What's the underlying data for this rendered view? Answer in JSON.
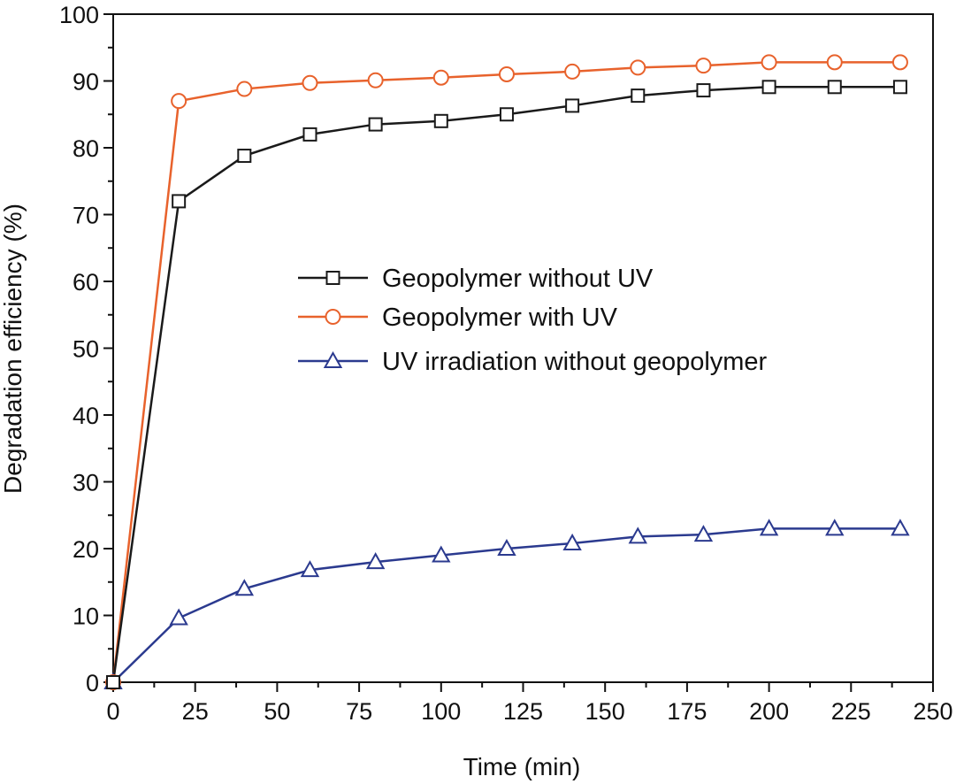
{
  "chart_data": {
    "type": "line",
    "title": "",
    "xlabel": "Time (min)",
    "ylabel": "Degradation efficiency (%)",
    "xlim": [
      0,
      250
    ],
    "ylim": [
      0,
      100
    ],
    "x_ticks": [
      0,
      25,
      50,
      75,
      100,
      125,
      150,
      175,
      200,
      225,
      250
    ],
    "y_ticks": [
      0,
      10,
      20,
      30,
      40,
      50,
      60,
      70,
      80,
      90,
      100
    ],
    "grid": false,
    "legend_position": "center-right",
    "x": [
      0,
      20,
      40,
      60,
      80,
      100,
      120,
      140,
      160,
      180,
      200,
      220,
      240
    ],
    "series": [
      {
        "name": "Geopolymer without UV",
        "marker": "square",
        "color": "#1a1a1a",
        "values": [
          0,
          72,
          78.8,
          82,
          83.5,
          84,
          85,
          86.3,
          87.8,
          88.6,
          89.1,
          89.1,
          89.1
        ]
      },
      {
        "name": "Geopolymer with UV",
        "marker": "circle",
        "color": "#e8622c",
        "values": [
          0,
          87,
          88.8,
          89.7,
          90.1,
          90.5,
          91,
          91.4,
          92,
          92.3,
          92.8,
          92.8,
          92.8
        ]
      },
      {
        "name": "UV irradiation without geopolymer",
        "marker": "triangle",
        "color": "#2b3a8f",
        "values": [
          0,
          9.6,
          14,
          16.8,
          18,
          19,
          20,
          20.8,
          21.8,
          22.1,
          23,
          23,
          23
        ]
      }
    ]
  }
}
